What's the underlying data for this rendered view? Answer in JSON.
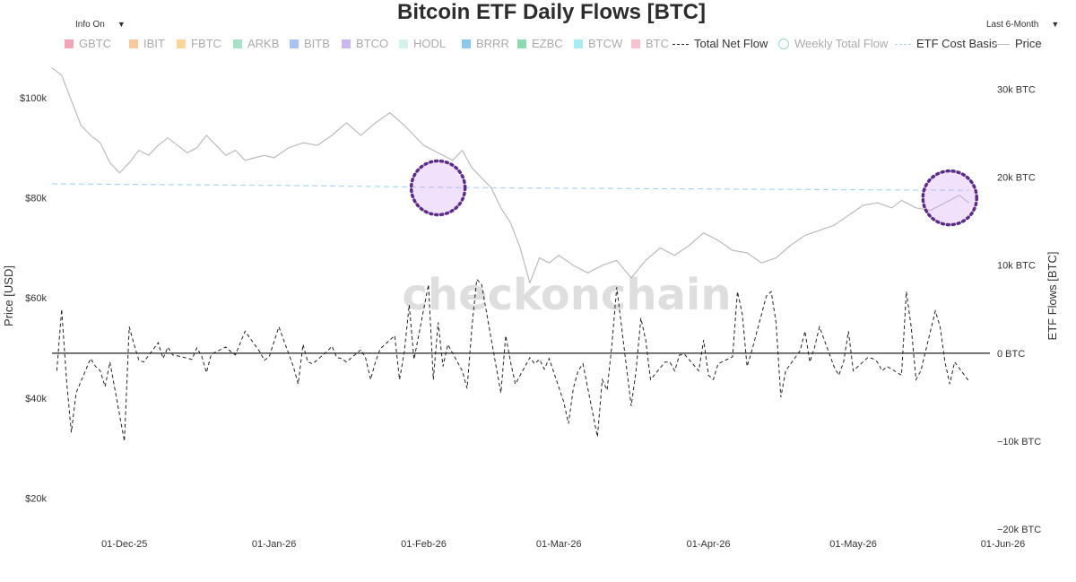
{
  "title": "Bitcoin ETF Daily Flows [BTC]",
  "controls": {
    "info_label": "Info On",
    "range_label": "Last 6-Month",
    "dropdown_glyph": "▼"
  },
  "legend": [
    {
      "label": "GBTC",
      "color": "#f4a6b8",
      "kind": "box",
      "faded": true
    },
    {
      "label": "IBIT",
      "color": "#f7c8a0",
      "kind": "box",
      "faded": true
    },
    {
      "label": "FBTC",
      "color": "#f9d59a",
      "kind": "box",
      "faded": true
    },
    {
      "label": "ARKB",
      "color": "#a8e0c8",
      "kind": "box",
      "faded": true
    },
    {
      "label": "BITB",
      "color": "#a9c4f2",
      "kind": "box",
      "faded": true
    },
    {
      "label": "BTCO",
      "color": "#c9b8f0",
      "kind": "box",
      "faded": true
    },
    {
      "label": "HODL",
      "color": "#d4f2ea",
      "kind": "box",
      "faded": true
    },
    {
      "label": "BRRR",
      "color": "#8cc8ea",
      "kind": "box",
      "faded": true
    },
    {
      "label": "EZBC",
      "color": "#8fd9b0",
      "kind": "box",
      "faded": true
    },
    {
      "label": "BTCW",
      "color": "#a7ecf2",
      "kind": "box",
      "faded": true
    },
    {
      "label": "BTC",
      "color": "#f7c2d0",
      "kind": "box",
      "faded": true
    },
    {
      "label": "Total Net Flow",
      "color": "#222222",
      "kind": "dash",
      "faded": false
    },
    {
      "label": "Weekly Total Flow",
      "color": "#9fd4d0",
      "kind": "ring",
      "faded": true
    },
    {
      "label": "ETF Cost Basis",
      "color": "#a9d6ee",
      "kind": "dashlight",
      "faded": false
    },
    {
      "label": "Price",
      "color": "#bbbbbb",
      "kind": "line",
      "faded": false
    }
  ],
  "watermark": "checkonchain",
  "chart_data": {
    "type": "line",
    "title": "Bitcoin ETF Daily Flows [BTC]",
    "y_left_label": "Price [USD]",
    "y_right_label": "ETF Flows [BTC]",
    "y_left_ticks": [
      "$100k",
      "$80k",
      "$60k",
      "$40k",
      "$20k"
    ],
    "y_left_tick_values": [
      100000,
      80000,
      60000,
      40000,
      20000
    ],
    "y_left_range": [
      12000,
      107000
    ],
    "y_right_ticks": [
      "30k BTC",
      "20k BTC",
      "10k BTC",
      "0 BTC",
      "−10k BTC",
      "−20k BTC"
    ],
    "y_right_tick_values": [
      30000,
      20000,
      10000,
      0,
      -10000,
      -20000
    ],
    "y_right_range": [
      -21000,
      33000
    ],
    "x_ticks": [
      "01-Dec-25",
      "01-Jan-26",
      "01-Feb-26",
      "01-Mar-26",
      "01-Apr-26",
      "01-May-26",
      "01-Jun-26"
    ],
    "x_tick_dates": [
      "2025-12-01",
      "2026-01-01",
      "2026-02-01",
      "2026-03-01",
      "2026-04-01",
      "2026-05-01",
      "2026-06-01"
    ],
    "x_range": [
      "2025-11-16",
      "2026-06-05"
    ],
    "price_series": {
      "name": "Price",
      "color": "#bbbbbb",
      "points": [
        [
          "2025-11-16",
          106000
        ],
        [
          "2025-11-18",
          104500
        ],
        [
          "2025-11-20",
          99500
        ],
        [
          "2025-11-22",
          94500
        ],
        [
          "2025-11-24",
          92500
        ],
        [
          "2025-11-26",
          91000
        ],
        [
          "2025-11-28",
          87000
        ],
        [
          "2025-11-30",
          85000
        ],
        [
          "2025-12-02",
          87000
        ],
        [
          "2025-12-04",
          89500
        ],
        [
          "2025-12-06",
          88500
        ],
        [
          "2025-12-08",
          90500
        ],
        [
          "2025-12-10",
          92000
        ],
        [
          "2025-12-12",
          90500
        ],
        [
          "2025-12-14",
          89000
        ],
        [
          "2025-12-16",
          90000
        ],
        [
          "2025-12-18",
          92500
        ],
        [
          "2025-12-20",
          90500
        ],
        [
          "2025-12-22",
          88500
        ],
        [
          "2025-12-24",
          89500
        ],
        [
          "2025-12-26",
          87500
        ],
        [
          "2025-12-28",
          88000
        ],
        [
          "2025-12-30",
          88500
        ],
        [
          "2026-01-01",
          88000
        ],
        [
          "2026-01-04",
          90000
        ],
        [
          "2026-01-07",
          91000
        ],
        [
          "2026-01-10",
          90500
        ],
        [
          "2026-01-13",
          92500
        ],
        [
          "2026-01-16",
          95000
        ],
        [
          "2026-01-19",
          92500
        ],
        [
          "2026-01-22",
          95000
        ],
        [
          "2026-01-25",
          97000
        ],
        [
          "2026-01-28",
          94500
        ],
        [
          "2026-02-01",
          90500
        ],
        [
          "2026-02-04",
          89000
        ],
        [
          "2026-02-07",
          87500
        ],
        [
          "2026-02-09",
          89500
        ],
        [
          "2026-02-11",
          86000
        ],
        [
          "2026-02-13",
          84000
        ],
        [
          "2026-02-15",
          82000
        ],
        [
          "2026-02-17",
          78000
        ],
        [
          "2026-02-19",
          75000
        ],
        [
          "2026-02-21",
          70000
        ],
        [
          "2026-02-23",
          63000
        ],
        [
          "2026-02-25",
          68000
        ],
        [
          "2026-02-27",
          67000
        ],
        [
          "2026-03-01",
          68500
        ],
        [
          "2026-03-04",
          66500
        ],
        [
          "2026-03-07",
          65000
        ],
        [
          "2026-03-10",
          66500
        ],
        [
          "2026-03-13",
          67500
        ],
        [
          "2026-03-16",
          64000
        ],
        [
          "2026-03-19",
          67500
        ],
        [
          "2026-03-22",
          70000
        ],
        [
          "2026-03-25",
          68500
        ],
        [
          "2026-03-28",
          70500
        ],
        [
          "2026-03-31",
          73000
        ],
        [
          "2026-04-03",
          71500
        ],
        [
          "2026-04-06",
          69500
        ],
        [
          "2026-04-09",
          69000
        ],
        [
          "2026-04-12",
          67000
        ],
        [
          "2026-04-15",
          68000
        ],
        [
          "2026-04-18",
          70500
        ],
        [
          "2026-04-21",
          72500
        ],
        [
          "2026-04-24",
          73500
        ],
        [
          "2026-04-27",
          74500
        ],
        [
          "2026-04-30",
          76500
        ],
        [
          "2026-05-03",
          78500
        ],
        [
          "2026-05-06",
          79000
        ],
        [
          "2026-05-09",
          78000
        ],
        [
          "2026-05-11",
          79500
        ],
        [
          "2026-05-14",
          78000
        ],
        [
          "2026-05-17",
          77500
        ],
        [
          "2026-05-20",
          79000
        ],
        [
          "2026-05-23",
          80500
        ],
        [
          "2026-05-25",
          79000
        ]
      ]
    },
    "cost_basis_series": {
      "name": "ETF Cost Basis",
      "color": "#a9d6ee",
      "points": [
        [
          "2025-11-16",
          82800
        ],
        [
          "2026-01-01",
          82500
        ],
        [
          "2026-02-15",
          82000
        ],
        [
          "2026-05-25",
          81500
        ]
      ]
    },
    "net_flow_series": {
      "name": "Total Net Flow",
      "color": "#222222",
      "points": [
        [
          "2025-11-17",
          -2000
        ],
        [
          "2025-11-18",
          5000
        ],
        [
          "2025-11-19",
          -3000
        ],
        [
          "2025-11-20",
          -9000
        ],
        [
          "2025-11-21",
          -4500
        ],
        [
          "2025-11-24",
          -600
        ],
        [
          "2025-11-25",
          -1500
        ],
        [
          "2025-11-26",
          -2000
        ],
        [
          "2025-11-27",
          -3800
        ],
        [
          "2025-11-28",
          -1000
        ],
        [
          "2025-12-01",
          -10000
        ],
        [
          "2025-12-02",
          3000
        ],
        [
          "2025-12-03",
          1000
        ],
        [
          "2025-12-04",
          -800
        ],
        [
          "2025-12-05",
          -1000
        ],
        [
          "2025-12-08",
          1200
        ],
        [
          "2025-12-09",
          -600
        ],
        [
          "2025-12-10",
          700
        ],
        [
          "2025-12-11",
          -200
        ],
        [
          "2025-12-12",
          -300
        ],
        [
          "2025-12-15",
          -700
        ],
        [
          "2025-12-16",
          600
        ],
        [
          "2025-12-17",
          -300
        ],
        [
          "2025-12-18",
          -2200
        ],
        [
          "2025-12-19",
          -100
        ],
        [
          "2025-12-22",
          700
        ],
        [
          "2025-12-23",
          200
        ],
        [
          "2025-12-24",
          -200
        ],
        [
          "2025-12-26",
          2500
        ],
        [
          "2025-12-29",
          200
        ],
        [
          "2025-12-30",
          -800
        ],
        [
          "2025-12-31",
          -400
        ],
        [
          "2026-01-02",
          3000
        ],
        [
          "2026-01-05",
          -1500
        ],
        [
          "2026-01-06",
          -3500
        ],
        [
          "2026-01-07",
          1000
        ],
        [
          "2026-01-08",
          -1000
        ],
        [
          "2026-01-09",
          -1200
        ],
        [
          "2026-01-12",
          200
        ],
        [
          "2026-01-13",
          800
        ],
        [
          "2026-01-14",
          -500
        ],
        [
          "2026-01-15",
          -600
        ],
        [
          "2026-01-16",
          -1000
        ],
        [
          "2026-01-19",
          400
        ],
        [
          "2026-01-20",
          -600
        ],
        [
          "2026-01-21",
          -3000
        ],
        [
          "2026-01-22",
          -1000
        ],
        [
          "2026-01-23",
          500
        ],
        [
          "2026-01-26",
          2000
        ],
        [
          "2026-01-27",
          -3000
        ],
        [
          "2026-01-28",
          200
        ],
        [
          "2026-01-29",
          5500
        ],
        [
          "2026-01-30",
          -700
        ],
        [
          "2026-02-02",
          7800
        ],
        [
          "2026-02-03",
          -3000
        ],
        [
          "2026-02-04",
          3500
        ],
        [
          "2026-02-05",
          -1500
        ],
        [
          "2026-02-06",
          1000
        ],
        [
          "2026-02-09",
          -2000
        ],
        [
          "2026-02-10",
          -4000
        ],
        [
          "2026-02-11",
          3000
        ],
        [
          "2026-02-12",
          8400
        ],
        [
          "2026-02-13",
          7800
        ],
        [
          "2026-02-16",
          -1500
        ],
        [
          "2026-02-17",
          -4500
        ],
        [
          "2026-02-18",
          2000
        ],
        [
          "2026-02-19",
          -1000
        ],
        [
          "2026-02-20",
          -3500
        ],
        [
          "2026-02-23",
          -500
        ],
        [
          "2026-02-24",
          -1200
        ],
        [
          "2026-02-25",
          -700
        ],
        [
          "2026-02-26",
          -1800
        ],
        [
          "2026-02-27",
          -600
        ],
        [
          "2026-03-02",
          -5500
        ],
        [
          "2026-03-03",
          -8000
        ],
        [
          "2026-03-04",
          -4000
        ],
        [
          "2026-03-05",
          -2000
        ],
        [
          "2026-03-06",
          -1200
        ],
        [
          "2026-03-09",
          -9500
        ],
        [
          "2026-03-10",
          -3000
        ],
        [
          "2026-03-11",
          -4200
        ],
        [
          "2026-03-12",
          1000
        ],
        [
          "2026-03-13",
          7500
        ],
        [
          "2026-03-16",
          -6000
        ],
        [
          "2026-03-17",
          -2000
        ],
        [
          "2026-03-18",
          4000
        ],
        [
          "2026-03-19",
          1500
        ],
        [
          "2026-03-20",
          -3000
        ],
        [
          "2026-03-23",
          -1000
        ],
        [
          "2026-03-24",
          -1000
        ],
        [
          "2026-03-25",
          -2000
        ],
        [
          "2026-03-26",
          -200
        ],
        [
          "2026-03-27",
          -100
        ],
        [
          "2026-03-30",
          -2000
        ],
        [
          "2026-03-31",
          1500
        ],
        [
          "2026-04-01",
          -2500
        ],
        [
          "2026-04-02",
          -3000
        ],
        [
          "2026-04-03",
          -1200
        ],
        [
          "2026-04-06",
          -400
        ],
        [
          "2026-04-07",
          7000
        ],
        [
          "2026-04-08",
          4500
        ],
        [
          "2026-04-09",
          -1500
        ],
        [
          "2026-04-10",
          300
        ],
        [
          "2026-04-13",
          6500
        ],
        [
          "2026-04-14",
          7000
        ],
        [
          "2026-04-15",
          3500
        ],
        [
          "2026-04-16",
          -5000
        ],
        [
          "2026-04-17",
          -2000
        ],
        [
          "2026-04-20",
          300
        ],
        [
          "2026-04-21",
          2500
        ],
        [
          "2026-04-22",
          -1000
        ],
        [
          "2026-04-23",
          700
        ],
        [
          "2026-04-24",
          3000
        ],
        [
          "2026-04-27",
          -1500
        ],
        [
          "2026-04-28",
          -2500
        ],
        [
          "2026-04-29",
          -1000
        ],
        [
          "2026-04-30",
          2500
        ],
        [
          "2026-05-01",
          -2000
        ],
        [
          "2026-05-04",
          -500
        ],
        [
          "2026-05-05",
          -600
        ],
        [
          "2026-05-06",
          -1000
        ],
        [
          "2026-05-07",
          -2000
        ],
        [
          "2026-05-08",
          -1500
        ],
        [
          "2026-05-11",
          -2500
        ],
        [
          "2026-05-12",
          7000
        ],
        [
          "2026-05-13",
          3000
        ],
        [
          "2026-05-14",
          -3000
        ],
        [
          "2026-05-15",
          -2000
        ],
        [
          "2026-05-18",
          4800
        ],
        [
          "2026-05-19",
          3000
        ],
        [
          "2026-05-20",
          -1000
        ],
        [
          "2026-05-21",
          -3500
        ],
        [
          "2026-05-22",
          -1000
        ],
        [
          "2026-05-25",
          -3200
        ]
      ]
    },
    "highlights": [
      {
        "center_date": "2026-02-04",
        "center_price": 82000
      },
      {
        "center_date": "2026-05-21",
        "center_price": 80000
      }
    ]
  }
}
